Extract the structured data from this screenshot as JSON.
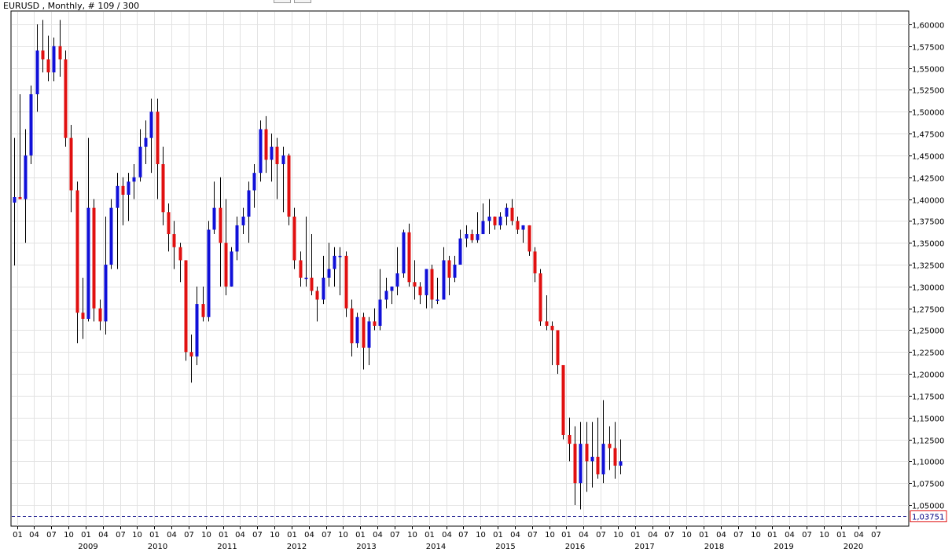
{
  "header": {
    "title": "EURUSD , Monthly, # 109 / 300"
  },
  "colors": {
    "bull": "#1010d8",
    "bear": "#e01010",
    "wick": "#000000",
    "grid": "#e2e2e2",
    "axis": "#000000",
    "current_price_line": "#000080",
    "current_price_label_border": "#e01010",
    "current_price_label_text": "#000080"
  },
  "chart_data": {
    "type": "candlestick",
    "symbol": "EURUSD",
    "timeframe": "Monthly",
    "title": "EURUSD , Monthly, # 109 / 300",
    "ylim": [
      1.0375,
      1.6
    ],
    "y_ticks": [
      "1,60000",
      "1,57500",
      "1,55000",
      "1,52500",
      "1,50000",
      "1,47500",
      "1,45000",
      "1,42500",
      "1,40000",
      "1,37500",
      "1,35000",
      "1,32500",
      "1,30000",
      "1,27500",
      "1,25000",
      "1,22500",
      "1,20000",
      "1,17500",
      "1,15000",
      "1,12500",
      "1,10000",
      "1,07500",
      "1,05000"
    ],
    "current_price": 1.03751,
    "current_price_label": "1,03751",
    "x_tick_labels": [
      "01",
      "04",
      "07",
      "10",
      "01",
      "04",
      "07",
      "10",
      "01",
      "04",
      "07",
      "10",
      "01",
      "04",
      "07",
      "10",
      "01",
      "04",
      "07",
      "10",
      "01",
      "04",
      "07",
      "10",
      "01",
      "04",
      "07",
      "10",
      "01",
      "04",
      "07",
      "10",
      "01",
      "04",
      "07",
      "10",
      "01",
      "04",
      "07",
      "10",
      "01",
      "04",
      "07",
      "10",
      "01",
      "04",
      "07",
      "10",
      "01",
      "04",
      "07"
    ],
    "year_labels": [
      "2009",
      "2010",
      "2011",
      "2012",
      "2013",
      "2014",
      "2015",
      "2016",
      "2017",
      "2018",
      "2019",
      "2020"
    ],
    "grid": true,
    "series": [
      {
        "t": "2008-12",
        "o": 1.396,
        "h": 1.47,
        "l": 1.324,
        "c": 1.4023
      },
      {
        "t": "2009-01",
        "o": 1.4023,
        "h": 1.52,
        "l": 1.4,
        "c": 1.4
      },
      {
        "t": "2009-02",
        "o": 1.4,
        "h": 1.48,
        "l": 1.35,
        "c": 1.45
      },
      {
        "t": "2009-03",
        "o": 1.45,
        "h": 1.53,
        "l": 1.44,
        "c": 1.52
      },
      {
        "t": "2009-04",
        "o": 1.52,
        "h": 1.6,
        "l": 1.5,
        "c": 1.57
      },
      {
        "t": "2009-05",
        "o": 1.57,
        "h": 1.605,
        "l": 1.545,
        "c": 1.56
      },
      {
        "t": "2009-06",
        "o": 1.56,
        "h": 1.587,
        "l": 1.535,
        "c": 1.545
      },
      {
        "t": "2009-07",
        "o": 1.545,
        "h": 1.585,
        "l": 1.535,
        "c": 1.575
      },
      {
        "t": "2009-08",
        "o": 1.575,
        "h": 1.605,
        "l": 1.54,
        "c": 1.56
      },
      {
        "t": "2009-09",
        "o": 1.56,
        "h": 1.57,
        "l": 1.46,
        "c": 1.47
      },
      {
        "t": "2009-10",
        "o": 1.47,
        "h": 1.485,
        "l": 1.385,
        "c": 1.41
      },
      {
        "t": "2009-11",
        "o": 1.41,
        "h": 1.42,
        "l": 1.235,
        "c": 1.27
      },
      {
        "t": "2009-12",
        "o": 1.27,
        "h": 1.31,
        "l": 1.24,
        "c": 1.263
      },
      {
        "t": "2010-01",
        "o": 1.263,
        "h": 1.47,
        "l": 1.26,
        "c": 1.39
      },
      {
        "t": "2010-02",
        "o": 1.39,
        "h": 1.4,
        "l": 1.26,
        "c": 1.275
      },
      {
        "t": "2010-03",
        "o": 1.275,
        "h": 1.285,
        "l": 1.25,
        "c": 1.26
      },
      {
        "t": "2010-04",
        "o": 1.26,
        "h": 1.38,
        "l": 1.245,
        "c": 1.325
      },
      {
        "t": "2010-05",
        "o": 1.325,
        "h": 1.4,
        "l": 1.32,
        "c": 1.39
      },
      {
        "t": "2010-06",
        "o": 1.39,
        "h": 1.43,
        "l": 1.32,
        "c": 1.415
      },
      {
        "t": "2010-07",
        "o": 1.415,
        "h": 1.425,
        "l": 1.37,
        "c": 1.405
      },
      {
        "t": "2010-08",
        "o": 1.405,
        "h": 1.43,
        "l": 1.375,
        "c": 1.42
      },
      {
        "t": "2010-09",
        "o": 1.42,
        "h": 1.44,
        "l": 1.4,
        "c": 1.425
      },
      {
        "t": "2010-10",
        "o": 1.425,
        "h": 1.48,
        "l": 1.42,
        "c": 1.46
      },
      {
        "t": "2010-11",
        "o": 1.46,
        "h": 1.49,
        "l": 1.44,
        "c": 1.47
      },
      {
        "t": "2010-12",
        "o": 1.47,
        "h": 1.515,
        "l": 1.43,
        "c": 1.5
      },
      {
        "t": "2011-01",
        "o": 1.5,
        "h": 1.515,
        "l": 1.4,
        "c": 1.44
      },
      {
        "t": "2011-02",
        "o": 1.44,
        "h": 1.46,
        "l": 1.37,
        "c": 1.385
      },
      {
        "t": "2011-03",
        "o": 1.385,
        "h": 1.395,
        "l": 1.34,
        "c": 1.36
      },
      {
        "t": "2011-04",
        "o": 1.36,
        "h": 1.375,
        "l": 1.32,
        "c": 1.345
      },
      {
        "t": "2011-05",
        "o": 1.345,
        "h": 1.35,
        "l": 1.305,
        "c": 1.33
      },
      {
        "t": "2011-06",
        "o": 1.33,
        "h": 1.33,
        "l": 1.215,
        "c": 1.225
      },
      {
        "t": "2011-07",
        "o": 1.225,
        "h": 1.245,
        "l": 1.19,
        "c": 1.22
      },
      {
        "t": "2011-08",
        "o": 1.22,
        "h": 1.3,
        "l": 1.21,
        "c": 1.28
      },
      {
        "t": "2011-09",
        "o": 1.28,
        "h": 1.3,
        "l": 1.26,
        "c": 1.265
      },
      {
        "t": "2011-10",
        "o": 1.265,
        "h": 1.375,
        "l": 1.26,
        "c": 1.365
      },
      {
        "t": "2011-11",
        "o": 1.365,
        "h": 1.42,
        "l": 1.36,
        "c": 1.39
      },
      {
        "t": "2011-12",
        "o": 1.39,
        "h": 1.425,
        "l": 1.3,
        "c": 1.35
      },
      {
        "t": "2012-01",
        "o": 1.35,
        "h": 1.4,
        "l": 1.29,
        "c": 1.3
      },
      {
        "t": "2012-02",
        "o": 1.3,
        "h": 1.345,
        "l": 1.3,
        "c": 1.34
      },
      {
        "t": "2012-03",
        "o": 1.34,
        "h": 1.38,
        "l": 1.33,
        "c": 1.37
      },
      {
        "t": "2012-04",
        "o": 1.37,
        "h": 1.39,
        "l": 1.36,
        "c": 1.38
      },
      {
        "t": "2012-05",
        "o": 1.38,
        "h": 1.42,
        "l": 1.35,
        "c": 1.41
      },
      {
        "t": "2012-06",
        "o": 1.41,
        "h": 1.44,
        "l": 1.39,
        "c": 1.43
      },
      {
        "t": "2012-07",
        "o": 1.43,
        "h": 1.49,
        "l": 1.42,
        "c": 1.48
      },
      {
        "t": "2012-08",
        "o": 1.48,
        "h": 1.495,
        "l": 1.43,
        "c": 1.445
      },
      {
        "t": "2012-09",
        "o": 1.445,
        "h": 1.475,
        "l": 1.42,
        "c": 1.46
      },
      {
        "t": "2012-10",
        "o": 1.46,
        "h": 1.47,
        "l": 1.4,
        "c": 1.44
      },
      {
        "t": "2012-11",
        "o": 1.44,
        "h": 1.46,
        "l": 1.385,
        "c": 1.45
      },
      {
        "t": "2012-12",
        "o": 1.45,
        "h": 1.452,
        "l": 1.37,
        "c": 1.38
      },
      {
        "t": "2013-01",
        "o": 1.38,
        "h": 1.39,
        "l": 1.32,
        "c": 1.33
      },
      {
        "t": "2013-02",
        "o": 1.33,
        "h": 1.34,
        "l": 1.3,
        "c": 1.31
      },
      {
        "t": "2013-03",
        "o": 1.31,
        "h": 1.38,
        "l": 1.3,
        "c": 1.31
      },
      {
        "t": "2013-04",
        "o": 1.31,
        "h": 1.36,
        "l": 1.29,
        "c": 1.295
      },
      {
        "t": "2013-05",
        "o": 1.295,
        "h": 1.3,
        "l": 1.26,
        "c": 1.285
      },
      {
        "t": "2013-06",
        "o": 1.285,
        "h": 1.335,
        "l": 1.28,
        "c": 1.31
      },
      {
        "t": "2013-07",
        "o": 1.31,
        "h": 1.35,
        "l": 1.3,
        "c": 1.32
      },
      {
        "t": "2013-08",
        "o": 1.32,
        "h": 1.345,
        "l": 1.3,
        "c": 1.335
      },
      {
        "t": "2013-09",
        "o": 1.335,
        "h": 1.345,
        "l": 1.29,
        "c": 1.335
      },
      {
        "t": "2013-10",
        "o": 1.335,
        "h": 1.34,
        "l": 1.265,
        "c": 1.275
      },
      {
        "t": "2013-11",
        "o": 1.275,
        "h": 1.285,
        "l": 1.22,
        "c": 1.235
      },
      {
        "t": "2013-12",
        "o": 1.235,
        "h": 1.27,
        "l": 1.23,
        "c": 1.265
      },
      {
        "t": "2014-01",
        "o": 1.265,
        "h": 1.27,
        "l": 1.205,
        "c": 1.23
      },
      {
        "t": "2014-02",
        "o": 1.23,
        "h": 1.265,
        "l": 1.21,
        "c": 1.26
      },
      {
        "t": "2014-03",
        "o": 1.26,
        "h": 1.275,
        "l": 1.25,
        "c": 1.255
      },
      {
        "t": "2014-04",
        "o": 1.255,
        "h": 1.32,
        "l": 1.25,
        "c": 1.285
      },
      {
        "t": "2014-05",
        "o": 1.285,
        "h": 1.31,
        "l": 1.275,
        "c": 1.295
      },
      {
        "t": "2014-06",
        "o": 1.295,
        "h": 1.3,
        "l": 1.28,
        "c": 1.3
      },
      {
        "t": "2014-07",
        "o": 1.3,
        "h": 1.345,
        "l": 1.29,
        "c": 1.315
      },
      {
        "t": "2014-08",
        "o": 1.315,
        "h": 1.365,
        "l": 1.31,
        "c": 1.362
      },
      {
        "t": "2014-09",
        "o": 1.362,
        "h": 1.372,
        "l": 1.3,
        "c": 1.305
      },
      {
        "t": "2014-10",
        "o": 1.305,
        "h": 1.33,
        "l": 1.285,
        "c": 1.3
      },
      {
        "t": "2014-11",
        "o": 1.3,
        "h": 1.305,
        "l": 1.28,
        "c": 1.29
      },
      {
        "t": "2014-12",
        "o": 1.29,
        "h": 1.32,
        "l": 1.275,
        "c": 1.32
      },
      {
        "t": "2015-01",
        "o": 1.32,
        "h": 1.325,
        "l": 1.275,
        "c": 1.285
      },
      {
        "t": "2015-02",
        "o": 1.285,
        "h": 1.31,
        "l": 1.28,
        "c": 1.285
      },
      {
        "t": "2015-03",
        "o": 1.285,
        "h": 1.345,
        "l": 1.285,
        "c": 1.33
      },
      {
        "t": "2015-04",
        "o": 1.33,
        "h": 1.335,
        "l": 1.29,
        "c": 1.31
      },
      {
        "t": "2015-05",
        "o": 1.31,
        "h": 1.335,
        "l": 1.305,
        "c": 1.325
      },
      {
        "t": "2015-06",
        "o": 1.325,
        "h": 1.365,
        "l": 1.325,
        "c": 1.355
      },
      {
        "t": "2015-07",
        "o": 1.355,
        "h": 1.37,
        "l": 1.345,
        "c": 1.36
      },
      {
        "t": "2015-08",
        "o": 1.36,
        "h": 1.365,
        "l": 1.35,
        "c": 1.353
      },
      {
        "t": "2015-09",
        "o": 1.353,
        "h": 1.385,
        "l": 1.35,
        "c": 1.36
      },
      {
        "t": "2015-10",
        "o": 1.36,
        "h": 1.395,
        "l": 1.36,
        "c": 1.375
      },
      {
        "t": "2015-11",
        "o": 1.375,
        "h": 1.4,
        "l": 1.36,
        "c": 1.38
      },
      {
        "t": "2015-12",
        "o": 1.38,
        "h": 1.38,
        "l": 1.365,
        "c": 1.37
      },
      {
        "t": "2016-01",
        "o": 1.37,
        "h": 1.385,
        "l": 1.365,
        "c": 1.38
      },
      {
        "t": "2016-02",
        "o": 1.38,
        "h": 1.395,
        "l": 1.37,
        "c": 1.39
      },
      {
        "t": "2016-03",
        "o": 1.39,
        "h": 1.4,
        "l": 1.37,
        "c": 1.375
      },
      {
        "t": "2016-04",
        "o": 1.375,
        "h": 1.38,
        "l": 1.36,
        "c": 1.365
      },
      {
        "t": "2016-05",
        "o": 1.365,
        "h": 1.37,
        "l": 1.35,
        "c": 1.37
      },
      {
        "t": "2016-06",
        "o": 1.37,
        "h": 1.37,
        "l": 1.335,
        "c": 1.34
      },
      {
        "t": "2016-07",
        "o": 1.34,
        "h": 1.345,
        "l": 1.305,
        "c": 1.315
      },
      {
        "t": "2016-08",
        "o": 1.315,
        "h": 1.32,
        "l": 1.255,
        "c": 1.26
      },
      {
        "t": "2016-09",
        "o": 1.26,
        "h": 1.29,
        "l": 1.25,
        "c": 1.255
      },
      {
        "t": "2016-10",
        "o": 1.255,
        "h": 1.26,
        "l": 1.21,
        "c": 1.25
      },
      {
        "t": "2016-11",
        "o": 1.25,
        "h": 1.25,
        "l": 1.2,
        "c": 1.21
      },
      {
        "t": "2016-12",
        "o": 1.21,
        "h": 1.21,
        "l": 1.125,
        "c": 1.13
      },
      {
        "t": "2017-01",
        "o": 1.13,
        "h": 1.15,
        "l": 1.1,
        "c": 1.12
      },
      {
        "t": "2017-02",
        "o": 1.12,
        "h": 1.14,
        "l": 1.05,
        "c": 1.075
      },
      {
        "t": "2017-03",
        "o": 1.075,
        "h": 1.145,
        "l": 1.045,
        "c": 1.12
      },
      {
        "t": "2017-04",
        "o": 1.12,
        "h": 1.145,
        "l": 1.065,
        "c": 1.1
      },
      {
        "t": "2017-05",
        "o": 1.1,
        "h": 1.145,
        "l": 1.07,
        "c": 1.105
      },
      {
        "t": "2017-06",
        "o": 1.105,
        "h": 1.15,
        "l": 1.08,
        "c": 1.085
      },
      {
        "t": "2017-07",
        "o": 1.085,
        "h": 1.17,
        "l": 1.075,
        "c": 1.12
      },
      {
        "t": "2017-08",
        "o": 1.12,
        "h": 1.14,
        "l": 1.09,
        "c": 1.115
      },
      {
        "t": "2017-09",
        "o": 1.115,
        "h": 1.145,
        "l": 1.08,
        "c": 1.095
      },
      {
        "t": "2017-10",
        "o": 1.095,
        "h": 1.125,
        "l": 1.085,
        "c": 1.1
      }
    ]
  }
}
